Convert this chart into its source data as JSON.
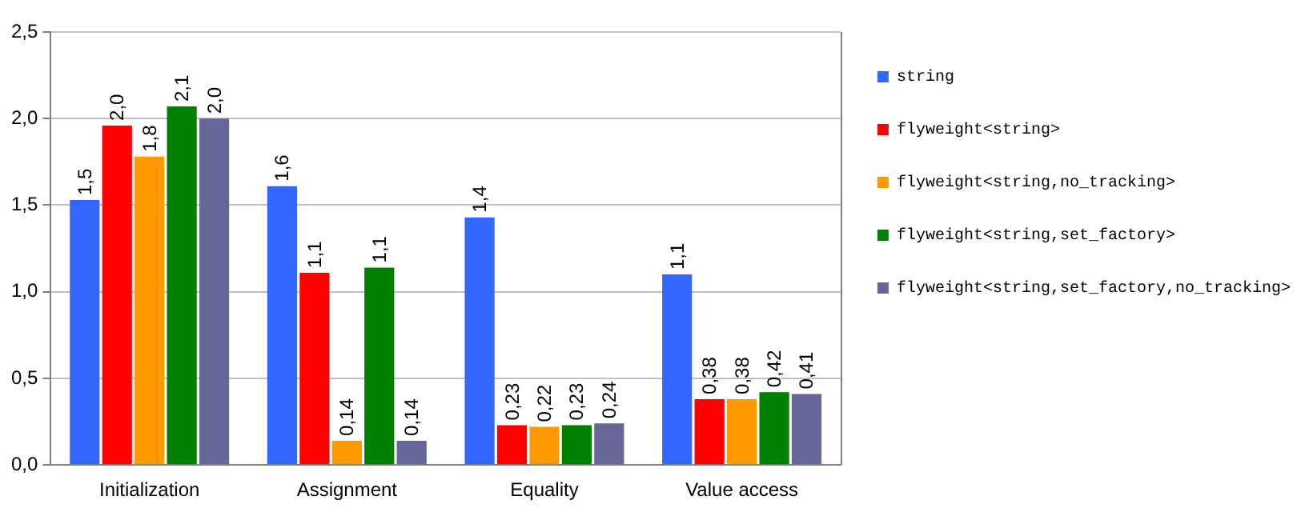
{
  "chart_data": {
    "type": "bar",
    "categories": [
      "Initialization",
      "Assignment",
      "Equality",
      "Value access"
    ],
    "series": [
      {
        "name": "string",
        "color": "#3366ff",
        "values": [
          1.53,
          1.61,
          1.43,
          1.1
        ],
        "value_labels": [
          "1,5",
          "1,6",
          "1,4",
          "1,1"
        ]
      },
      {
        "name": "flyweight<string>",
        "color": "#ff0000",
        "values": [
          1.96,
          1.11,
          0.23,
          0.38
        ],
        "value_labels": [
          "2,0",
          "1,1",
          "0,23",
          "0,38"
        ]
      },
      {
        "name": "flyweight<string,no_tracking>",
        "color": "#ff9900",
        "values": [
          1.78,
          0.14,
          0.22,
          0.38
        ],
        "value_labels": [
          "1,8",
          "0,14",
          "0,22",
          "0,38"
        ]
      },
      {
        "name": "flyweight<string,set_factory>",
        "color": "#008000",
        "values": [
          2.07,
          1.14,
          0.23,
          0.42
        ],
        "value_labels": [
          "2,1",
          "1,1",
          "0,23",
          "0,42"
        ]
      },
      {
        "name": "flyweight<string,set_factory,no_tracking>",
        "color": "#666699",
        "values": [
          2.0,
          0.14,
          0.24,
          0.41
        ],
        "value_labels": [
          "2,0",
          "0,14",
          "0,24",
          "0,41"
        ]
      }
    ],
    "ylim": [
      0,
      2.5
    ],
    "yticks": [
      {
        "value": 0,
        "label": "0,0"
      },
      {
        "value": 0.5,
        "label": "0,5"
      },
      {
        "value": 1,
        "label": "1,0"
      },
      {
        "value": 1.5,
        "label": "1,5"
      },
      {
        "value": 2,
        "label": "2,0"
      },
      {
        "value": 2.5,
        "label": "2,5"
      }
    ],
    "grid": "y",
    "legend": "right"
  }
}
